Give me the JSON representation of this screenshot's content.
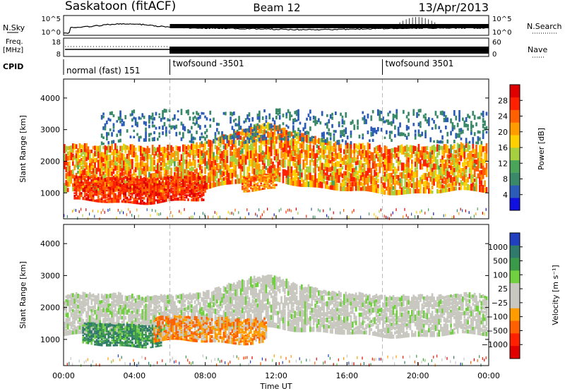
{
  "header": {
    "station": "Saskatoon (fitACF)",
    "beam": "Beam 12",
    "date": "13/Apr/2013"
  },
  "top_panels": {
    "nsky_label": "N.Sky",
    "nsky_ticks": [
      "10^5",
      "10^0"
    ],
    "nsearch_label": "N.Search",
    "nsearch_ticks": [
      "10^5",
      "10^0"
    ],
    "freq_label": "Freq.",
    "freq_unit": "[MHz]",
    "freq_ticks": [
      "18",
      "8"
    ],
    "nave_label": "Nave",
    "nave_ticks": [
      "60",
      "0"
    ],
    "cpid_label": "CPID",
    "cpid_segments": [
      {
        "label": "normal (fast) 151",
        "start_hr": 0,
        "end_hr": 6
      },
      {
        "label": "twofsound -3501",
        "start_hr": 6,
        "end_hr": 18
      },
      {
        "label": "twofsound 3501",
        "start_hr": 18,
        "end_hr": 24
      }
    ]
  },
  "chart_data": [
    {
      "type": "heatmap",
      "quantity": "Power",
      "ylabel": "Slant Range [km]",
      "yticks": [
        "1000",
        "2000",
        "3000",
        "4000"
      ],
      "ylim": [
        180,
        4600
      ],
      "xlim": [
        0,
        24
      ],
      "colorbar_label": "Power [dB]",
      "colorbar_ticks": [
        "4",
        "8",
        "12",
        "16",
        "20",
        "24",
        "28"
      ],
      "colorbar_colors": [
        "#1010e0",
        "#2d5cb8",
        "#3a8a6a",
        "#4aa55a",
        "#a6d040",
        "#ffd000",
        "#ff9c00",
        "#ff6000",
        "#ff2000",
        "#e00000"
      ],
      "features": [
        {
          "name": "main band",
          "t_start": 0.0,
          "t_end": 24.0,
          "range_km": [
            1000,
            2500
          ],
          "power_db": [
            12,
            30
          ]
        },
        {
          "name": "strong patch",
          "t_start": 0.5,
          "t_end": 8.0,
          "range_km": [
            700,
            1500
          ],
          "power_db": [
            24,
            32
          ]
        },
        {
          "name": "patch",
          "t_start": 10.0,
          "t_end": 12.0,
          "range_km": [
            1100,
            1600
          ],
          "power_db": [
            18,
            28
          ]
        },
        {
          "name": "weak scatter",
          "t_start": 2.0,
          "t_end": 24.0,
          "range_km": [
            2600,
            3600
          ],
          "power_db": [
            3,
            8
          ]
        }
      ]
    },
    {
      "type": "heatmap",
      "quantity": "Velocity",
      "ylabel": "Slant Range [km]",
      "xlabel": "Time UT",
      "yticks": [
        "1000",
        "2000",
        "3000",
        "4000"
      ],
      "ylim": [
        180,
        4600
      ],
      "xlim": [
        0,
        24
      ],
      "xticks": [
        "00:00",
        "04:00",
        "08:00",
        "12:00",
        "16:00",
        "20:00",
        "00:00"
      ],
      "colorbar_label": "Velocity [m s⁻¹]",
      "colorbar_ticks": [
        "1000",
        "500",
        "100",
        "25",
        "−25",
        "−100",
        "−500",
        "−1000"
      ],
      "colorbar_colors": [
        "#2040c0",
        "#2f7a6a",
        "#3a9a4a",
        "#70d040",
        "#c8c8c0",
        "#c8c8c0",
        "#ff9c00",
        "#ff6000",
        "#ff2000",
        "#e00000"
      ],
      "features": [
        {
          "name": "ground scatter",
          "t_start": 0.0,
          "t_end": 24.0,
          "range_km": [
            1100,
            2400
          ],
          "velocity_ms": [
            -25,
            25
          ]
        },
        {
          "name": "positive flow",
          "t_start": 1.0,
          "t_end": 5.5,
          "range_km": [
            800,
            1500
          ],
          "velocity_ms": [
            100,
            800
          ]
        },
        {
          "name": "negative flow",
          "t_start": 5.0,
          "t_end": 11.5,
          "range_km": [
            900,
            1700
          ],
          "velocity_ms": [
            -500,
            -100
          ]
        }
      ]
    }
  ]
}
